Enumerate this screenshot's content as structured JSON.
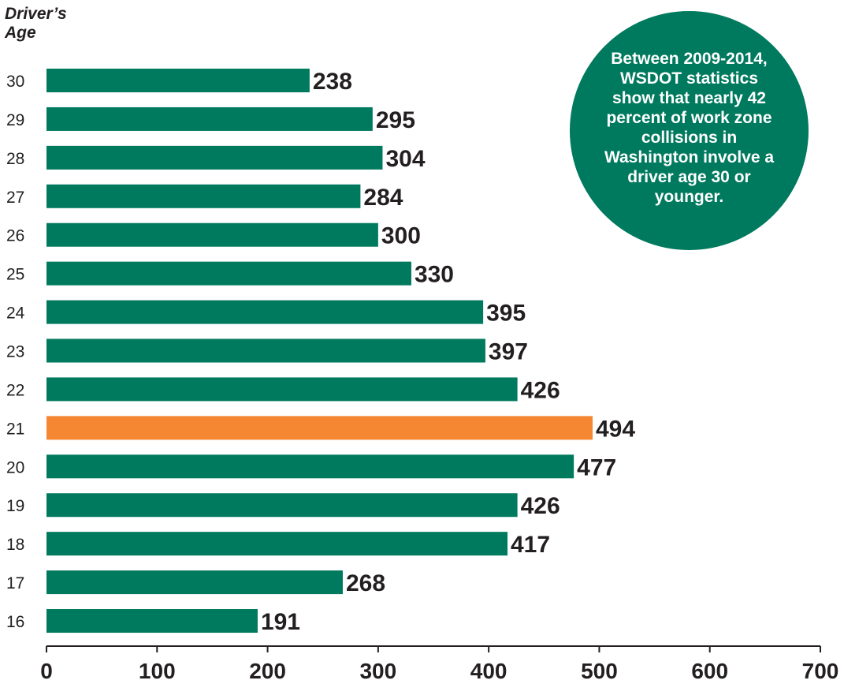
{
  "chart_data": {
    "type": "bar",
    "orientation": "horizontal",
    "ylabel": "Driver’s Age",
    "xlabel": "",
    "categories": [
      "30",
      "29",
      "28",
      "27",
      "26",
      "25",
      "24",
      "23",
      "22",
      "21",
      "20",
      "19",
      "18",
      "17",
      "16"
    ],
    "values": [
      238,
      295,
      304,
      284,
      300,
      330,
      395,
      397,
      426,
      494,
      477,
      426,
      417,
      268,
      191
    ],
    "highlight_category": "21",
    "xlim": [
      0,
      700
    ],
    "xticks": [
      "0",
      "100",
      "200",
      "300",
      "400",
      "500",
      "600",
      "700"
    ],
    "grid": false,
    "annotation": "Between 2009-2014, WSDOT statistics show that nearly 42 percent of work zone collisions in Washington involve a driver age 30 or younger."
  },
  "colors": {
    "bar": "#007a5e",
    "highlight": "#f58733",
    "callout": "#007a5e",
    "text": "#231f20"
  }
}
